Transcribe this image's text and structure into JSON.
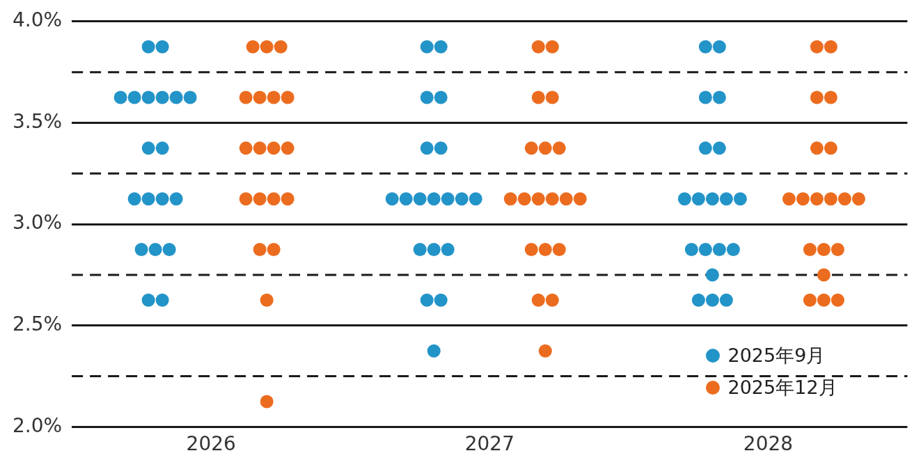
{
  "chart_data": {
    "type": "scatter",
    "xlim": [
      2025.5,
      2028.5
    ],
    "xticks": [
      2026,
      2027,
      2028
    ],
    "ylim": [
      2.0,
      4.0
    ],
    "yticks": [
      {
        "value": 2.0,
        "label": "2.0%"
      },
      {
        "value": 2.5,
        "label": "2.5%"
      },
      {
        "value": 3.0,
        "label": "3.0%"
      },
      {
        "value": 3.5,
        "label": "3.5%"
      },
      {
        "value": 4.0,
        "label": "4.0%"
      }
    ],
    "grid": "y",
    "legend": "bottom right",
    "marker": "circle",
    "ref_lines": [
      {
        "axis": "y",
        "value": 2.25,
        "line_style": "dashed",
        "color": "#1a1a1a"
      },
      {
        "axis": "y",
        "value": 2.75,
        "line_style": "dashed",
        "color": "#1a1a1a"
      },
      {
        "axis": "y",
        "value": 3.25,
        "line_style": "dashed",
        "color": "#1a1a1a"
      },
      {
        "axis": "y",
        "value": 3.75,
        "line_style": "dashed",
        "color": "#1a1a1a"
      }
    ],
    "series": [
      {
        "name": "2025年9月",
        "color": "#2394c8",
        "x": [
          2025.775,
          2025.825,
          2025.675,
          2025.725,
          2025.775,
          2025.825,
          2025.875,
          2025.925,
          2025.775,
          2025.825,
          2025.725,
          2025.775,
          2025.825,
          2025.875,
          2025.75,
          2025.8,
          2025.85,
          2025.775,
          2025.825,
          2026.775,
          2026.825,
          2026.775,
          2026.825,
          2026.775,
          2026.825,
          2026.65,
          2026.7,
          2026.75,
          2026.8,
          2026.85,
          2026.9,
          2026.95,
          2026.75,
          2026.8,
          2026.85,
          2026.775,
          2026.825,
          2026.8,
          2027.775,
          2027.825,
          2027.775,
          2027.825,
          2027.775,
          2027.825,
          2027.7,
          2027.75,
          2027.8,
          2027.85,
          2027.9,
          2027.725,
          2027.775,
          2027.825,
          2027.875,
          2027.8,
          2027.75,
          2027.8,
          2027.85
        ],
        "values": [
          3.875,
          3.875,
          3.625,
          3.625,
          3.625,
          3.625,
          3.625,
          3.625,
          3.375,
          3.375,
          3.125,
          3.125,
          3.125,
          3.125,
          2.875,
          2.875,
          2.875,
          2.625,
          2.625,
          3.875,
          3.875,
          3.625,
          3.625,
          3.375,
          3.375,
          3.125,
          3.125,
          3.125,
          3.125,
          3.125,
          3.125,
          3.125,
          2.875,
          2.875,
          2.875,
          2.625,
          2.625,
          2.375,
          3.875,
          3.875,
          3.625,
          3.625,
          3.375,
          3.375,
          3.125,
          3.125,
          3.125,
          3.125,
          3.125,
          2.875,
          2.875,
          2.875,
          2.875,
          2.75,
          2.625,
          2.625,
          2.625
        ]
      },
      {
        "name": "2025年12月",
        "color": "#ec6c1f",
        "x": [
          2026.15,
          2026.2,
          2026.25,
          2026.125,
          2026.175,
          2026.225,
          2026.275,
          2026.125,
          2026.175,
          2026.225,
          2026.275,
          2026.125,
          2026.175,
          2026.225,
          2026.275,
          2026.175,
          2026.225,
          2026.2,
          2026.2,
          2027.175,
          2027.225,
          2027.175,
          2027.225,
          2027.15,
          2027.2,
          2027.25,
          2027.075,
          2027.125,
          2027.175,
          2027.225,
          2027.275,
          2027.325,
          2027.15,
          2027.2,
          2027.25,
          2027.175,
          2027.225,
          2027.2,
          2028.175,
          2028.225,
          2028.175,
          2028.225,
          2028.175,
          2028.225,
          2028.075,
          2028.125,
          2028.175,
          2028.225,
          2028.275,
          2028.325,
          2028.15,
          2028.2,
          2028.25,
          2028.2,
          2028.15,
          2028.2,
          2028.25
        ],
        "values": [
          3.875,
          3.875,
          3.875,
          3.625,
          3.625,
          3.625,
          3.625,
          3.375,
          3.375,
          3.375,
          3.375,
          3.125,
          3.125,
          3.125,
          3.125,
          2.875,
          2.875,
          2.625,
          2.125,
          3.875,
          3.875,
          3.625,
          3.625,
          3.375,
          3.375,
          3.375,
          3.125,
          3.125,
          3.125,
          3.125,
          3.125,
          3.125,
          2.875,
          2.875,
          2.875,
          2.625,
          2.625,
          2.375,
          3.875,
          3.875,
          3.625,
          3.625,
          3.375,
          3.375,
          3.125,
          3.125,
          3.125,
          3.125,
          3.125,
          3.125,
          2.875,
          2.875,
          2.875,
          2.75,
          2.625,
          2.625,
          2.625
        ]
      }
    ]
  }
}
